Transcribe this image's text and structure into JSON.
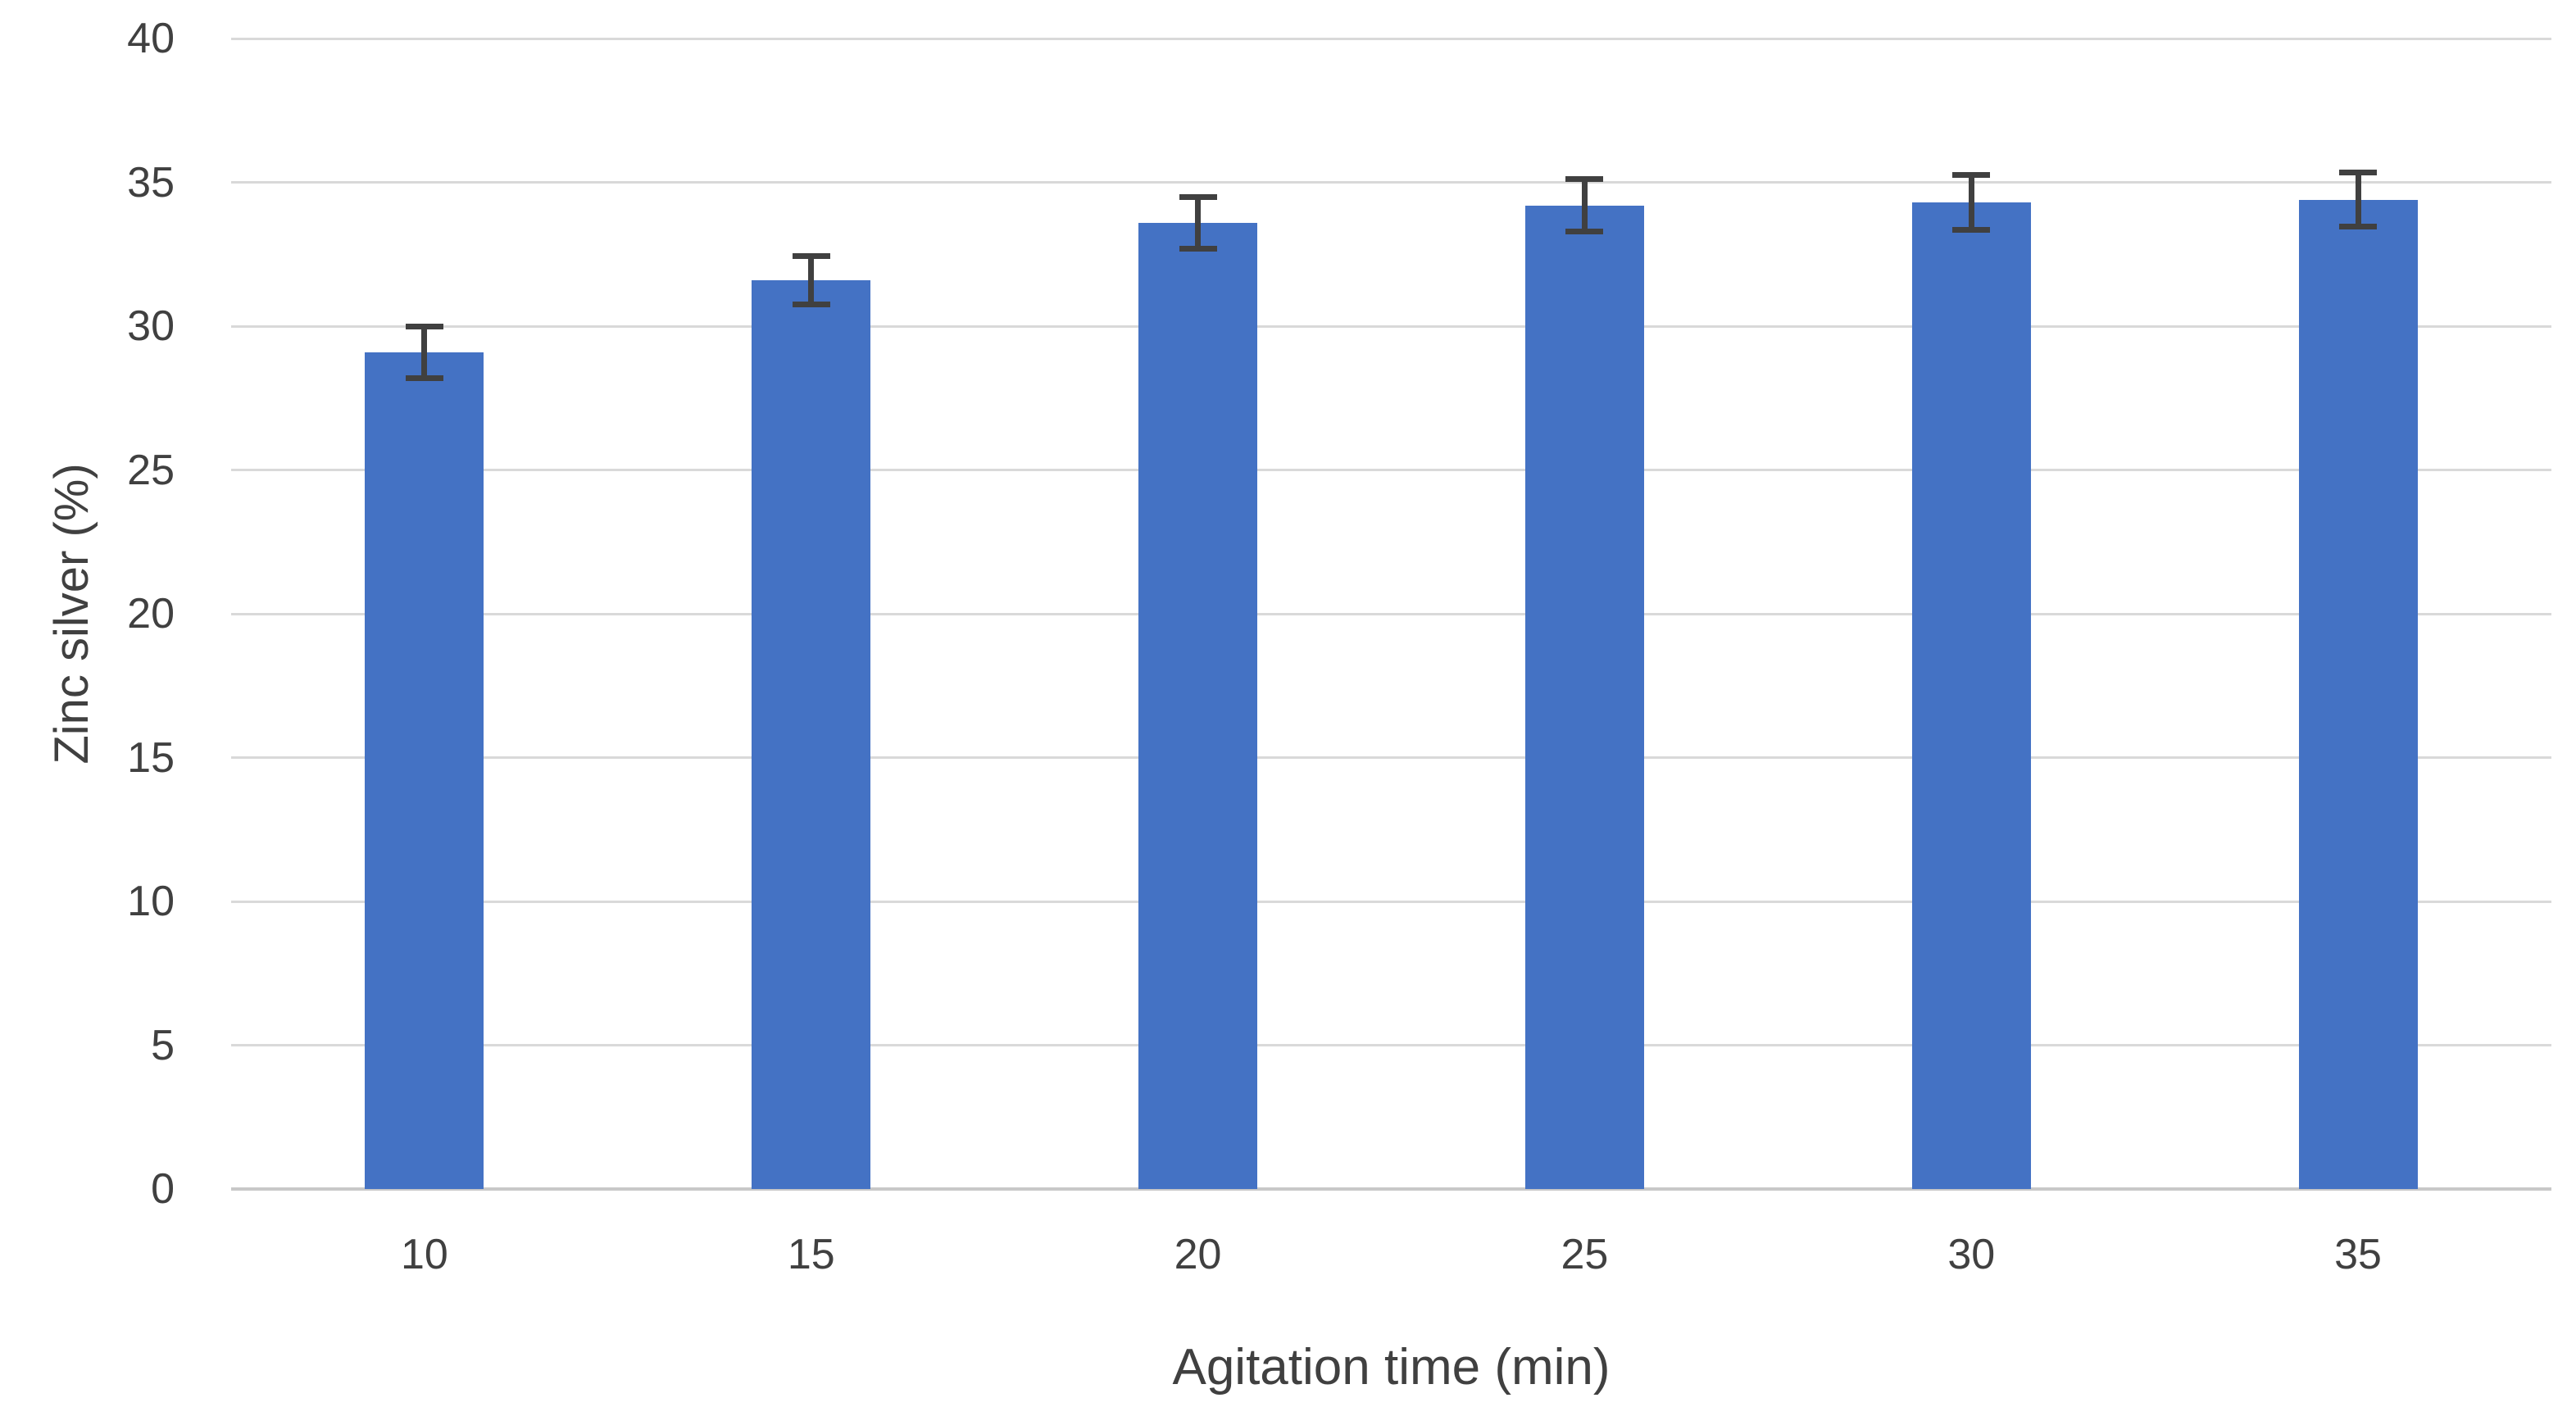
{
  "chart_data": {
    "type": "bar",
    "title": "",
    "xlabel": "Agitation time (min)",
    "ylabel": "Zinc silver (%)",
    "categories": [
      "10",
      "15",
      "20",
      "25",
      "30",
      "35"
    ],
    "series": [
      {
        "name": "Zinc silver",
        "values": [
          29.1,
          31.6,
          33.6,
          34.2,
          34.3,
          34.4
        ],
        "error_bars": [
          0.9,
          0.85,
          0.9,
          0.9,
          0.95,
          0.95
        ]
      }
    ],
    "ylim": [
      0,
      40
    ],
    "yticks": [
      0,
      5,
      10,
      15,
      20,
      25,
      30,
      35,
      40
    ],
    "grid": true,
    "legend": false,
    "bar_color": "#4472C4",
    "error_bar_color": "#404040",
    "gridline_color": "#D9D9D9",
    "axis_line_color": "#C8C8C8",
    "text_color": "#404040"
  }
}
